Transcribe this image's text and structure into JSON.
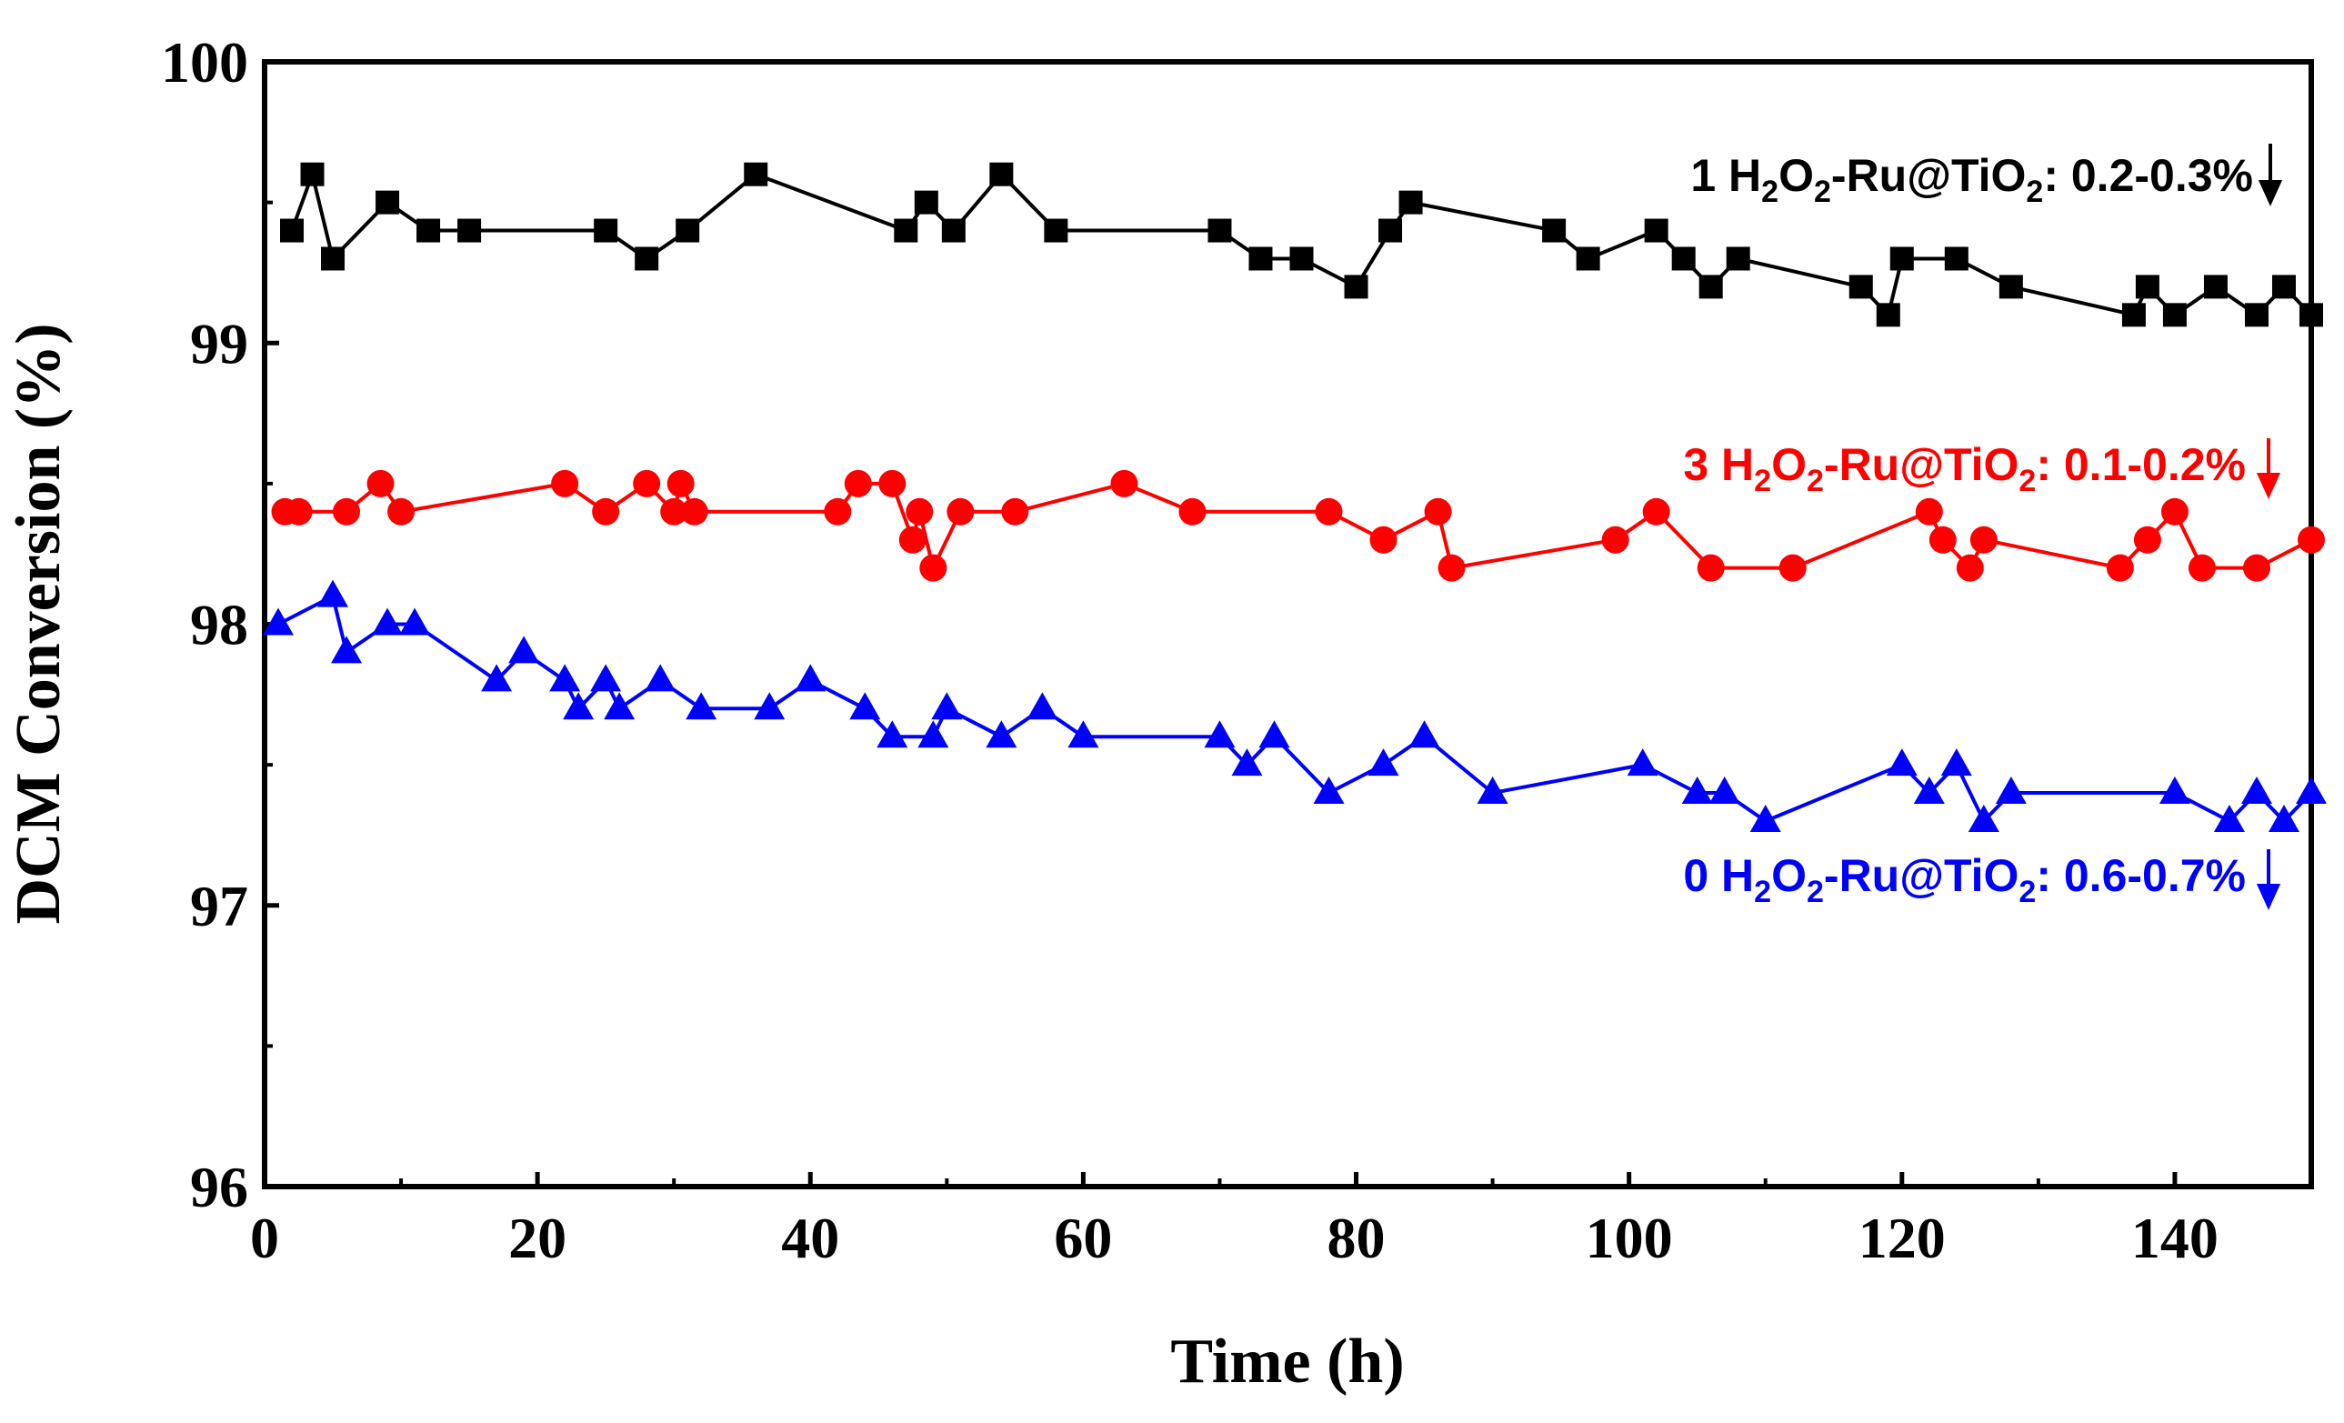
{
  "chart_data": {
    "type": "line",
    "xlabel": "Time (h)",
    "ylabel": "DCM Conversion (%)",
    "xlim": [
      0,
      150
    ],
    "ylim": [
      96,
      100
    ],
    "xticks": [
      "0",
      "20",
      "40",
      "60",
      "80",
      "100",
      "120",
      "140"
    ],
    "yticks": [
      "96",
      "97",
      "98",
      "99",
      "100"
    ],
    "grid": false,
    "series": [
      {
        "marker": "square",
        "color": "#000000",
        "x": [
          2,
          3.5,
          5,
          9,
          12,
          15,
          25,
          28,
          31,
          36,
          47,
          48.5,
          50.5,
          54,
          58,
          70,
          73,
          76,
          80,
          82.5,
          84,
          94.5,
          97,
          102,
          104,
          106,
          108,
          117,
          119,
          120,
          124,
          128,
          137,
          138,
          140,
          143,
          146,
          148,
          150
        ],
        "y": [
          99.4,
          99.6,
          99.3,
          99.5,
          99.4,
          99.4,
          99.4,
          99.3,
          99.4,
          99.6,
          99.4,
          99.5,
          99.4,
          99.6,
          99.4,
          99.4,
          99.3,
          99.3,
          99.2,
          99.4,
          99.5,
          99.4,
          99.3,
          99.4,
          99.3,
          99.2,
          99.3,
          99.2,
          99.1,
          99.3,
          99.3,
          99.2,
          99.1,
          99.2,
          99.1,
          99.2,
          99.1,
          99.2,
          99.1
        ]
      },
      {
        "marker": "circle",
        "color": "#ff0000",
        "x": [
          1.5,
          2.5,
          6,
          8.5,
          10,
          22,
          25,
          28,
          30,
          30.5,
          31.5,
          42,
          43.5,
          46,
          47.5,
          48,
          49,
          51,
          55,
          63,
          68,
          78,
          82,
          86,
          87,
          99,
          102,
          106,
          112,
          122,
          123,
          125,
          126,
          136,
          138,
          140,
          142,
          146,
          150
        ],
        "y": [
          98.4,
          98.4,
          98.4,
          98.5,
          98.4,
          98.5,
          98.4,
          98.5,
          98.4,
          98.5,
          98.4,
          98.4,
          98.5,
          98.5,
          98.3,
          98.4,
          98.2,
          98.4,
          98.4,
          98.5,
          98.4,
          98.4,
          98.3,
          98.4,
          98.2,
          98.3,
          98.4,
          98.2,
          98.2,
          98.4,
          98.3,
          98.2,
          98.3,
          98.2,
          98.3,
          98.4,
          98.2,
          98.2,
          98.3
        ]
      },
      {
        "marker": "triangle",
        "color": "#0000ff",
        "x": [
          1,
          5,
          6,
          9,
          11,
          17,
          19,
          22,
          23,
          25,
          26,
          29,
          32,
          37,
          40,
          44,
          46,
          49,
          50,
          54,
          57,
          60,
          70,
          72,
          74,
          78,
          82,
          85,
          90,
          101,
          105,
          107,
          110,
          120,
          122,
          124,
          126,
          128,
          140,
          144,
          146,
          148,
          150
        ],
        "y": [
          98.0,
          98.1,
          97.9,
          98.0,
          98.0,
          97.8,
          97.9,
          97.8,
          97.7,
          97.8,
          97.7,
          97.8,
          97.7,
          97.7,
          97.8,
          97.7,
          97.6,
          97.6,
          97.7,
          97.6,
          97.7,
          97.6,
          97.6,
          97.5,
          97.6,
          97.4,
          97.5,
          97.6,
          97.4,
          97.5,
          97.4,
          97.4,
          97.3,
          97.5,
          97.4,
          97.5,
          97.3,
          97.4,
          97.4,
          97.3,
          97.4,
          97.3,
          97.4
        ]
      }
    ],
    "annotations": [
      {
        "prefix": "1 H",
        "s1": "2",
        "mid1": "O",
        "s2": "2",
        "mid2": "-Ru@TiO",
        "s3": "2",
        "suffix": ": 0.2-0.3%",
        "color": "#000000",
        "arrow": "down"
      },
      {
        "prefix": "3 H",
        "s1": "2",
        "mid1": "O",
        "s2": "2",
        "mid2": "-Ru@TiO",
        "s3": "2",
        "suffix": ": 0.1-0.2%",
        "color": "#ff0000",
        "arrow": "down"
      },
      {
        "prefix": "0 H",
        "s1": "2",
        "mid1": "O",
        "s2": "2",
        "mid2": "-Ru@TiO",
        "s3": "2",
        "suffix": ": 0.6-0.7%",
        "color": "#0000ff",
        "arrow": "down"
      }
    ]
  }
}
